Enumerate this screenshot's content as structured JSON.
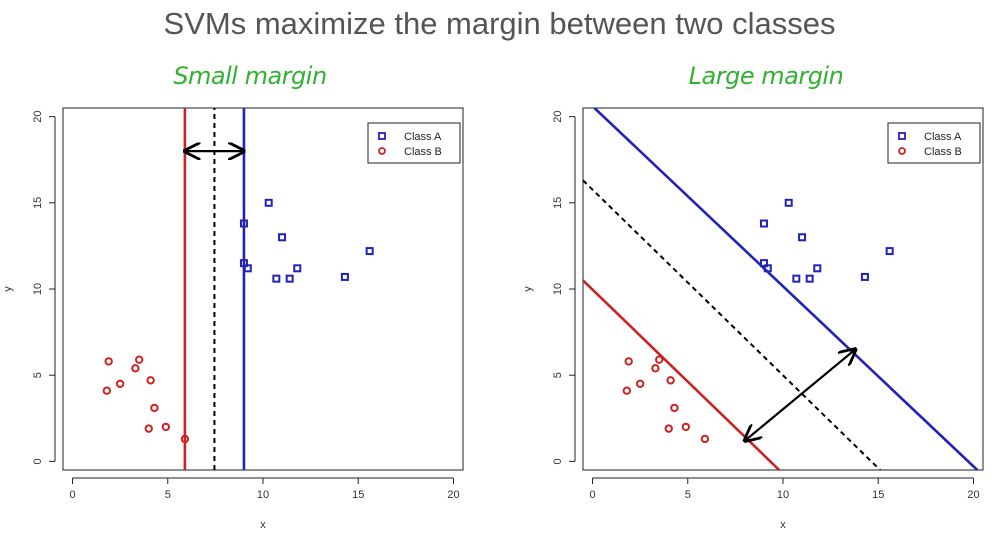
{
  "header": {
    "title": "SVMs maximize the margin between two classes",
    "left_subtitle": "Small margin",
    "right_subtitle": "Large margin"
  },
  "colors": {
    "class_a": "#2222bb",
    "class_b": "#cc2222",
    "subtitle": "#33b033",
    "boundary": "#000000"
  },
  "chart_data": [
    {
      "type": "scatter",
      "title": "Small margin",
      "xlabel": "x",
      "ylabel": "y",
      "xlim": [
        -0.5,
        20.5
      ],
      "ylim": [
        -0.5,
        20.5
      ],
      "xticks": [
        0,
        5,
        10,
        15,
        20
      ],
      "yticks": [
        0,
        5,
        10,
        15,
        20
      ],
      "grid": false,
      "legend_position": "top-right",
      "series": [
        {
          "name": "Class A",
          "marker": "square",
          "color": "#2222bb",
          "points": [
            [
              9.0,
              13.8
            ],
            [
              10.3,
              15.0
            ],
            [
              9.0,
              11.5
            ],
            [
              9.2,
              11.2
            ],
            [
              11.0,
              13.0
            ],
            [
              10.7,
              10.6
            ],
            [
              11.4,
              10.6
            ],
            [
              11.8,
              11.2
            ],
            [
              14.3,
              10.7
            ],
            [
              15.6,
              12.2
            ]
          ]
        },
        {
          "name": "Class B",
          "marker": "circle",
          "color": "#cc2222",
          "points": [
            [
              1.9,
              5.8
            ],
            [
              3.5,
              5.9
            ],
            [
              3.3,
              5.4
            ],
            [
              2.5,
              4.5
            ],
            [
              1.8,
              4.1
            ],
            [
              4.1,
              4.7
            ],
            [
              4.3,
              3.1
            ],
            [
              4.0,
              1.9
            ],
            [
              4.9,
              2.0
            ],
            [
              5.9,
              1.3
            ]
          ]
        }
      ],
      "lines": [
        {
          "role": "class-b-support",
          "color": "#cc2222",
          "style": "solid",
          "from": [
            5.9,
            -0.5
          ],
          "to": [
            5.9,
            20.5
          ]
        },
        {
          "role": "decision-boundary",
          "color": "#000000",
          "style": "dashed",
          "from": [
            7.45,
            -0.5
          ],
          "to": [
            7.45,
            20.5
          ]
        },
        {
          "role": "class-a-support",
          "color": "#2222bb",
          "style": "solid",
          "from": [
            9.0,
            -0.5
          ],
          "to": [
            9.0,
            20.5
          ]
        }
      ],
      "margin_arrow": {
        "from": [
          5.9,
          18.0
        ],
        "to": [
          9.0,
          18.0
        ]
      }
    },
    {
      "type": "scatter",
      "title": "Large margin",
      "xlabel": "x",
      "ylabel": "y",
      "xlim": [
        -0.5,
        20.5
      ],
      "ylim": [
        -0.5,
        20.5
      ],
      "xticks": [
        0,
        5,
        10,
        15,
        20
      ],
      "yticks": [
        0,
        5,
        10,
        15,
        20
      ],
      "grid": false,
      "legend_position": "top-right",
      "series": [
        {
          "name": "Class A",
          "marker": "square",
          "color": "#2222bb",
          "points": [
            [
              9.0,
              13.8
            ],
            [
              10.3,
              15.0
            ],
            [
              9.0,
              11.5
            ],
            [
              9.2,
              11.2
            ],
            [
              11.0,
              13.0
            ],
            [
              10.7,
              10.6
            ],
            [
              11.4,
              10.6
            ],
            [
              11.8,
              11.2
            ],
            [
              14.3,
              10.7
            ],
            [
              15.6,
              12.2
            ]
          ]
        },
        {
          "name": "Class B",
          "marker": "circle",
          "color": "#cc2222",
          "points": [
            [
              1.9,
              5.8
            ],
            [
              3.5,
              5.9
            ],
            [
              3.3,
              5.4
            ],
            [
              2.5,
              4.5
            ],
            [
              1.8,
              4.1
            ],
            [
              4.1,
              4.7
            ],
            [
              4.3,
              3.1
            ],
            [
              4.0,
              1.9
            ],
            [
              4.9,
              2.0
            ],
            [
              5.9,
              1.3
            ]
          ]
        }
      ],
      "lines": [
        {
          "role": "class-a-support",
          "color": "#2222bb",
          "style": "solid",
          "from": [
            0.1,
            20.5
          ],
          "to": [
            20.2,
            -0.5
          ]
        },
        {
          "role": "decision-boundary",
          "color": "#000000",
          "style": "dashed",
          "from": [
            -0.5,
            16.3
          ],
          "to": [
            15.1,
            -0.5
          ]
        },
        {
          "role": "class-b-support",
          "color": "#cc2222",
          "style": "solid",
          "from": [
            -0.5,
            10.5
          ],
          "to": [
            9.8,
            -0.5
          ]
        }
      ],
      "margin_arrow": {
        "from": [
          8.0,
          1.2
        ],
        "to": [
          13.8,
          6.5
        ]
      }
    }
  ]
}
